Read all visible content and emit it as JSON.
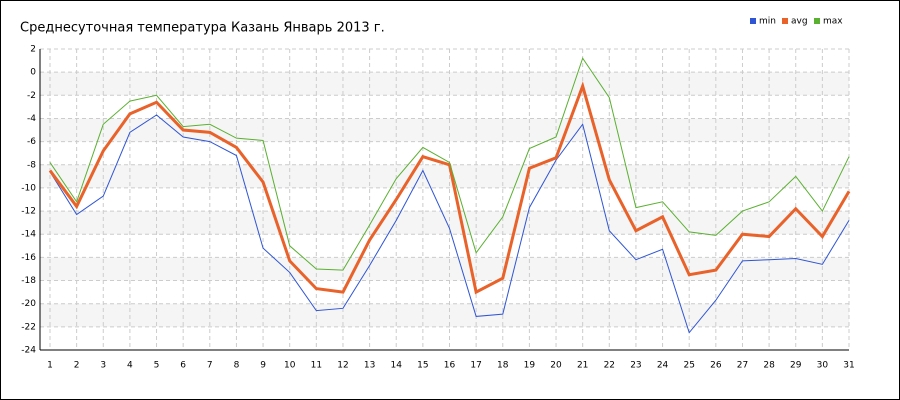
{
  "chart_data": {
    "type": "line",
    "title": "Среднесуточная температура Казань  Январь 2013 г.",
    "x": [
      1,
      2,
      3,
      4,
      5,
      6,
      7,
      8,
      9,
      10,
      11,
      12,
      13,
      14,
      15,
      16,
      17,
      18,
      19,
      20,
      21,
      22,
      23,
      24,
      25,
      26,
      27,
      28,
      29,
      30,
      31
    ],
    "series": [
      {
        "name": "min",
        "color": "#2f55d4",
        "values": [
          -8.6,
          -12.3,
          -10.7,
          -5.2,
          -3.7,
          -5.6,
          -6,
          -7.2,
          -15.2,
          -17.3,
          -20.6,
          -20.4,
          -16.7,
          -12.8,
          -8.5,
          -13.5,
          -21.1,
          -20.9,
          -11.7,
          -7.6,
          -4.5,
          -13.7,
          -16.2,
          -15.3,
          -22.5,
          -19.7,
          -16.3,
          -16.2,
          -16.1,
          -16.6,
          -12.8
        ]
      },
      {
        "name": "avg",
        "color": "#e8622a",
        "values": [
          -8.5,
          -11.6,
          -6.8,
          -3.6,
          -2.6,
          -5,
          -5.2,
          -6.5,
          -9.5,
          -16.3,
          -18.7,
          -19,
          -14.5,
          -11,
          -7.3,
          -8,
          -19,
          -17.8,
          -8.3,
          -7.4,
          -1.2,
          -9.3,
          -13.7,
          -12.5,
          -17.5,
          -17.1,
          -14,
          -14.2,
          -11.8,
          -14.2,
          -10.3
        ]
      },
      {
        "name": "max",
        "color": "#5ab030",
        "values": [
          -7.8,
          -11.2,
          -4.5,
          -2.5,
          -2,
          -4.7,
          -4.5,
          -5.7,
          -5.9,
          -15,
          -17,
          -17.1,
          -13.2,
          -9.2,
          -6.5,
          -7.8,
          -15.6,
          -12.5,
          -6.6,
          -5.6,
          1.2,
          -2.2,
          -11.7,
          -11.2,
          -13.8,
          -14.1,
          -12,
          -11.2,
          -9,
          -12,
          -7.3
        ]
      }
    ],
    "xlim": [
      1,
      31
    ],
    "xticks": [
      1,
      2,
      3,
      4,
      5,
      6,
      7,
      8,
      9,
      10,
      11,
      12,
      13,
      14,
      15,
      16,
      17,
      18,
      19,
      20,
      21,
      22,
      23,
      24,
      25,
      26,
      27,
      28,
      29,
      30,
      31
    ],
    "ylim": [
      -24,
      2
    ],
    "yticks": [
      -24,
      -22,
      -20,
      -18,
      -16,
      -14,
      -12,
      -10,
      -8,
      -6,
      -4,
      -2,
      0,
      2
    ],
    "grid": true,
    "legend": "top-right"
  }
}
